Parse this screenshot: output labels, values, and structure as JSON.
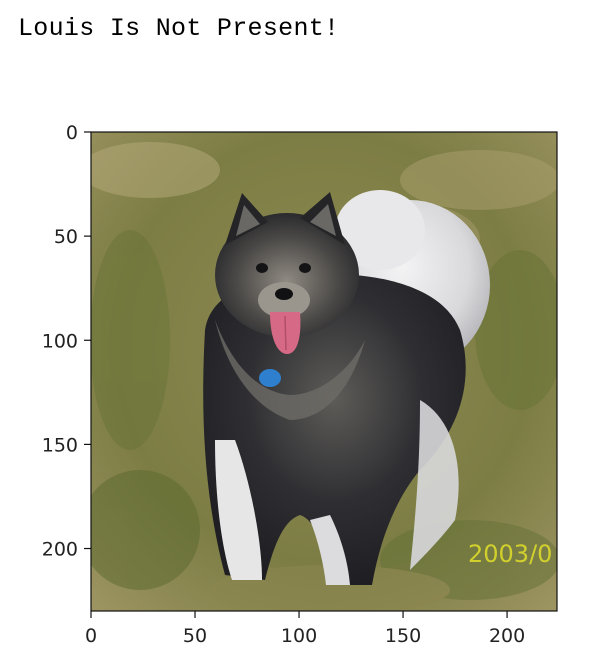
{
  "cell_output": {
    "stdout_text": "Louis Is Not Present!"
  },
  "image_plot": {
    "x_ticks": [
      "0",
      "50",
      "100",
      "150",
      "200"
    ],
    "y_ticks": [
      "0",
      "50",
      "100",
      "150",
      "200"
    ],
    "x_tick_values": [
      0,
      50,
      100,
      150,
      200
    ],
    "y_tick_values": [
      0,
      50,
      100,
      150,
      200
    ],
    "x_range": [
      0,
      224
    ],
    "y_range": [
      0,
      230
    ],
    "watermark": "2003/0",
    "colors": {
      "grass_light": "#a79c6a",
      "grass_dark": "#6f7a3c",
      "fur_dark": "#2b2b2f",
      "fur_grey": "#7d7a74",
      "fur_white": "#e9e9ea",
      "tongue": "#d66a86",
      "tag": "#2f7fcf",
      "watermark": "#e2df2a"
    },
    "icon": "dog-photo-icon"
  }
}
